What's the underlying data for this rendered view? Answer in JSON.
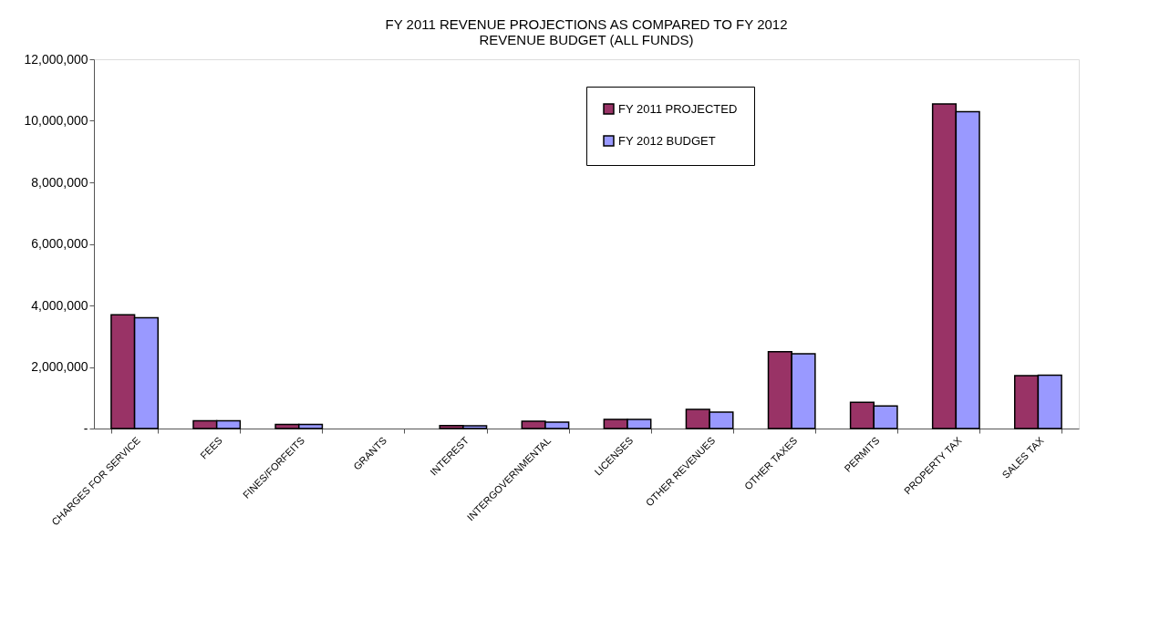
{
  "chart_data": {
    "type": "bar",
    "title": "FY 2011 REVENUE PROJECTIONS AS COMPARED TO FY 2012\nREVENUE BUDGET (ALL FUNDS)",
    "categories": [
      "CHARGES FOR SERVICE",
      "FEES",
      "FINES/FORFEITS",
      "GRANTS",
      "INTEREST",
      "INTERGOVERNMENTAL",
      "LICENSES",
      "OTHER REVENUES",
      "OTHER TAXES",
      "PERMITS",
      "PROPERTY TAX",
      "SALES TAX"
    ],
    "series": [
      {
        "name": "FY 2011 PROJECTED",
        "color": "#993366",
        "values": [
          3700000,
          250000,
          130000,
          null,
          100000,
          240000,
          300000,
          620000,
          2500000,
          850000,
          10550000,
          1720000
        ]
      },
      {
        "name": "FY 2012 BUDGET",
        "color": "#9999ff",
        "values": [
          3600000,
          250000,
          130000,
          null,
          90000,
          210000,
          300000,
          530000,
          2430000,
          730000,
          10300000,
          1730000
        ]
      }
    ],
    "ylim": [
      0,
      12000000
    ],
    "yticks": [
      {
        "value": 0,
        "label": "-"
      },
      {
        "value": 2000000,
        "label": "2,000,000"
      },
      {
        "value": 4000000,
        "label": "4,000,000"
      },
      {
        "value": 6000000,
        "label": "6,000,000"
      },
      {
        "value": 8000000,
        "label": "8,000,000"
      },
      {
        "value": 10000000,
        "label": "10,000,000"
      },
      {
        "value": 12000000,
        "label": "12,000,000"
      }
    ],
    "grid": false,
    "legend": "top right"
  }
}
